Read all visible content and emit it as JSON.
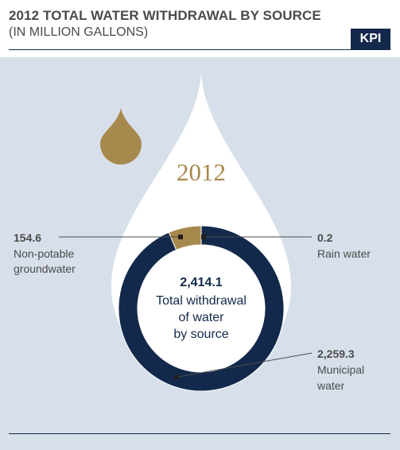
{
  "header": {
    "title": "2012 TOTAL WATER WITHDRAWAL BY SOURCE",
    "subtitle": "(IN MILLION GALLONS)",
    "badge": "KPI"
  },
  "colors": {
    "navy": "#13294b",
    "gold": "#a8894d",
    "panel": "#d7e0ea"
  },
  "chart_data": {
    "type": "pie",
    "title": "2012 TOTAL WATER WITHDRAWAL BY SOURCE",
    "subtitle": "(IN MILLION GALLONS)",
    "year": "2012",
    "total": {
      "value": "2,414.1",
      "label_lines": [
        "Total withdrawal",
        "of water",
        "by source"
      ]
    },
    "slices": [
      {
        "value_text": "0.2",
        "value": 0.2,
        "label_lines": [
          "Rain water"
        ],
        "color": "#a8894d"
      },
      {
        "value_text": "2,259.3",
        "value": 2259.3,
        "label_lines": [
          "Municipal",
          "water"
        ],
        "color": "#13294b"
      },
      {
        "value_text": "154.6",
        "value": 154.6,
        "label_lines": [
          "Non-potable",
          "groundwater"
        ],
        "color": "#a8894d"
      }
    ]
  }
}
